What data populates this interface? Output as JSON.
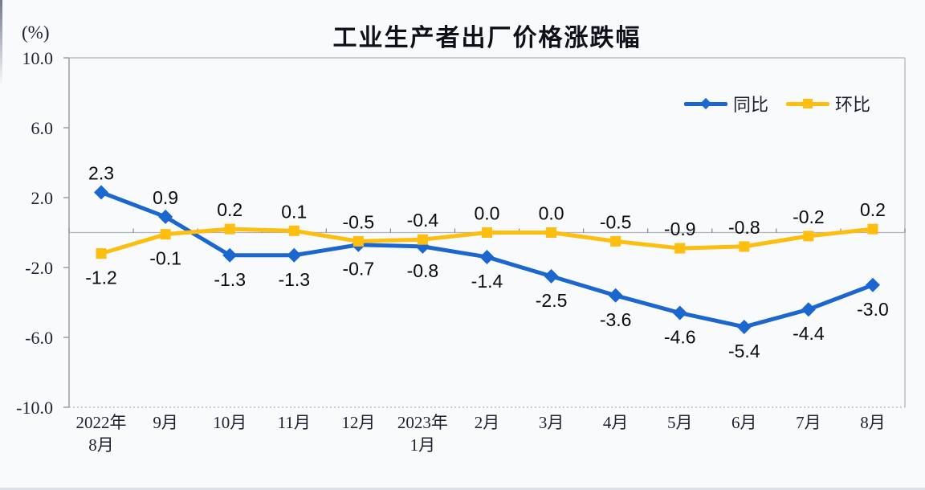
{
  "title": "工业生产者出厂价格涨跌幅",
  "unit_label": "(%)",
  "colors": {
    "yoy_blue": "#1b66cf",
    "mom_yellow": "#fdbe10",
    "axis_gray": "#9aa0a6",
    "zero_line_gray": "#b0b4ba",
    "border_gray": "#b9bec6",
    "axis_text": "#1e2030",
    "data_label_text": "#0b0b0e"
  },
  "chart_data": {
    "type": "line",
    "title": "工业生产者出厂价格涨跌幅",
    "ylabel": "(%)",
    "categories": [
      "2022年\n8月",
      "9月",
      "10月",
      "11月",
      "12月",
      "2023年\n1月",
      "2月",
      "3月",
      "4月",
      "5月",
      "6月",
      "7月",
      "8月"
    ],
    "series": [
      {
        "name": "同比",
        "marker": "diamond",
        "color": "#1b66cf",
        "values": [
          2.3,
          0.9,
          -1.3,
          -1.3,
          -0.7,
          -0.8,
          -1.4,
          -2.5,
          -3.6,
          -4.6,
          -5.4,
          -4.4,
          -3.0
        ]
      },
      {
        "name": "环比",
        "marker": "square",
        "color": "#fdbe10",
        "values": [
          -1.2,
          -0.1,
          0.2,
          0.1,
          -0.5,
          -0.4,
          0.0,
          0.0,
          -0.5,
          -0.9,
          -0.8,
          -0.2,
          0.2
        ]
      }
    ],
    "y_ticks": [
      10.0,
      6.0,
      2.0,
      -2.0,
      -6.0,
      -10.0
    ],
    "ylim": [
      -10,
      10
    ],
    "grid": "zero-line-only",
    "legend_position": "top-right-inside",
    "data_labels": "one-decimal, shown for every point"
  }
}
